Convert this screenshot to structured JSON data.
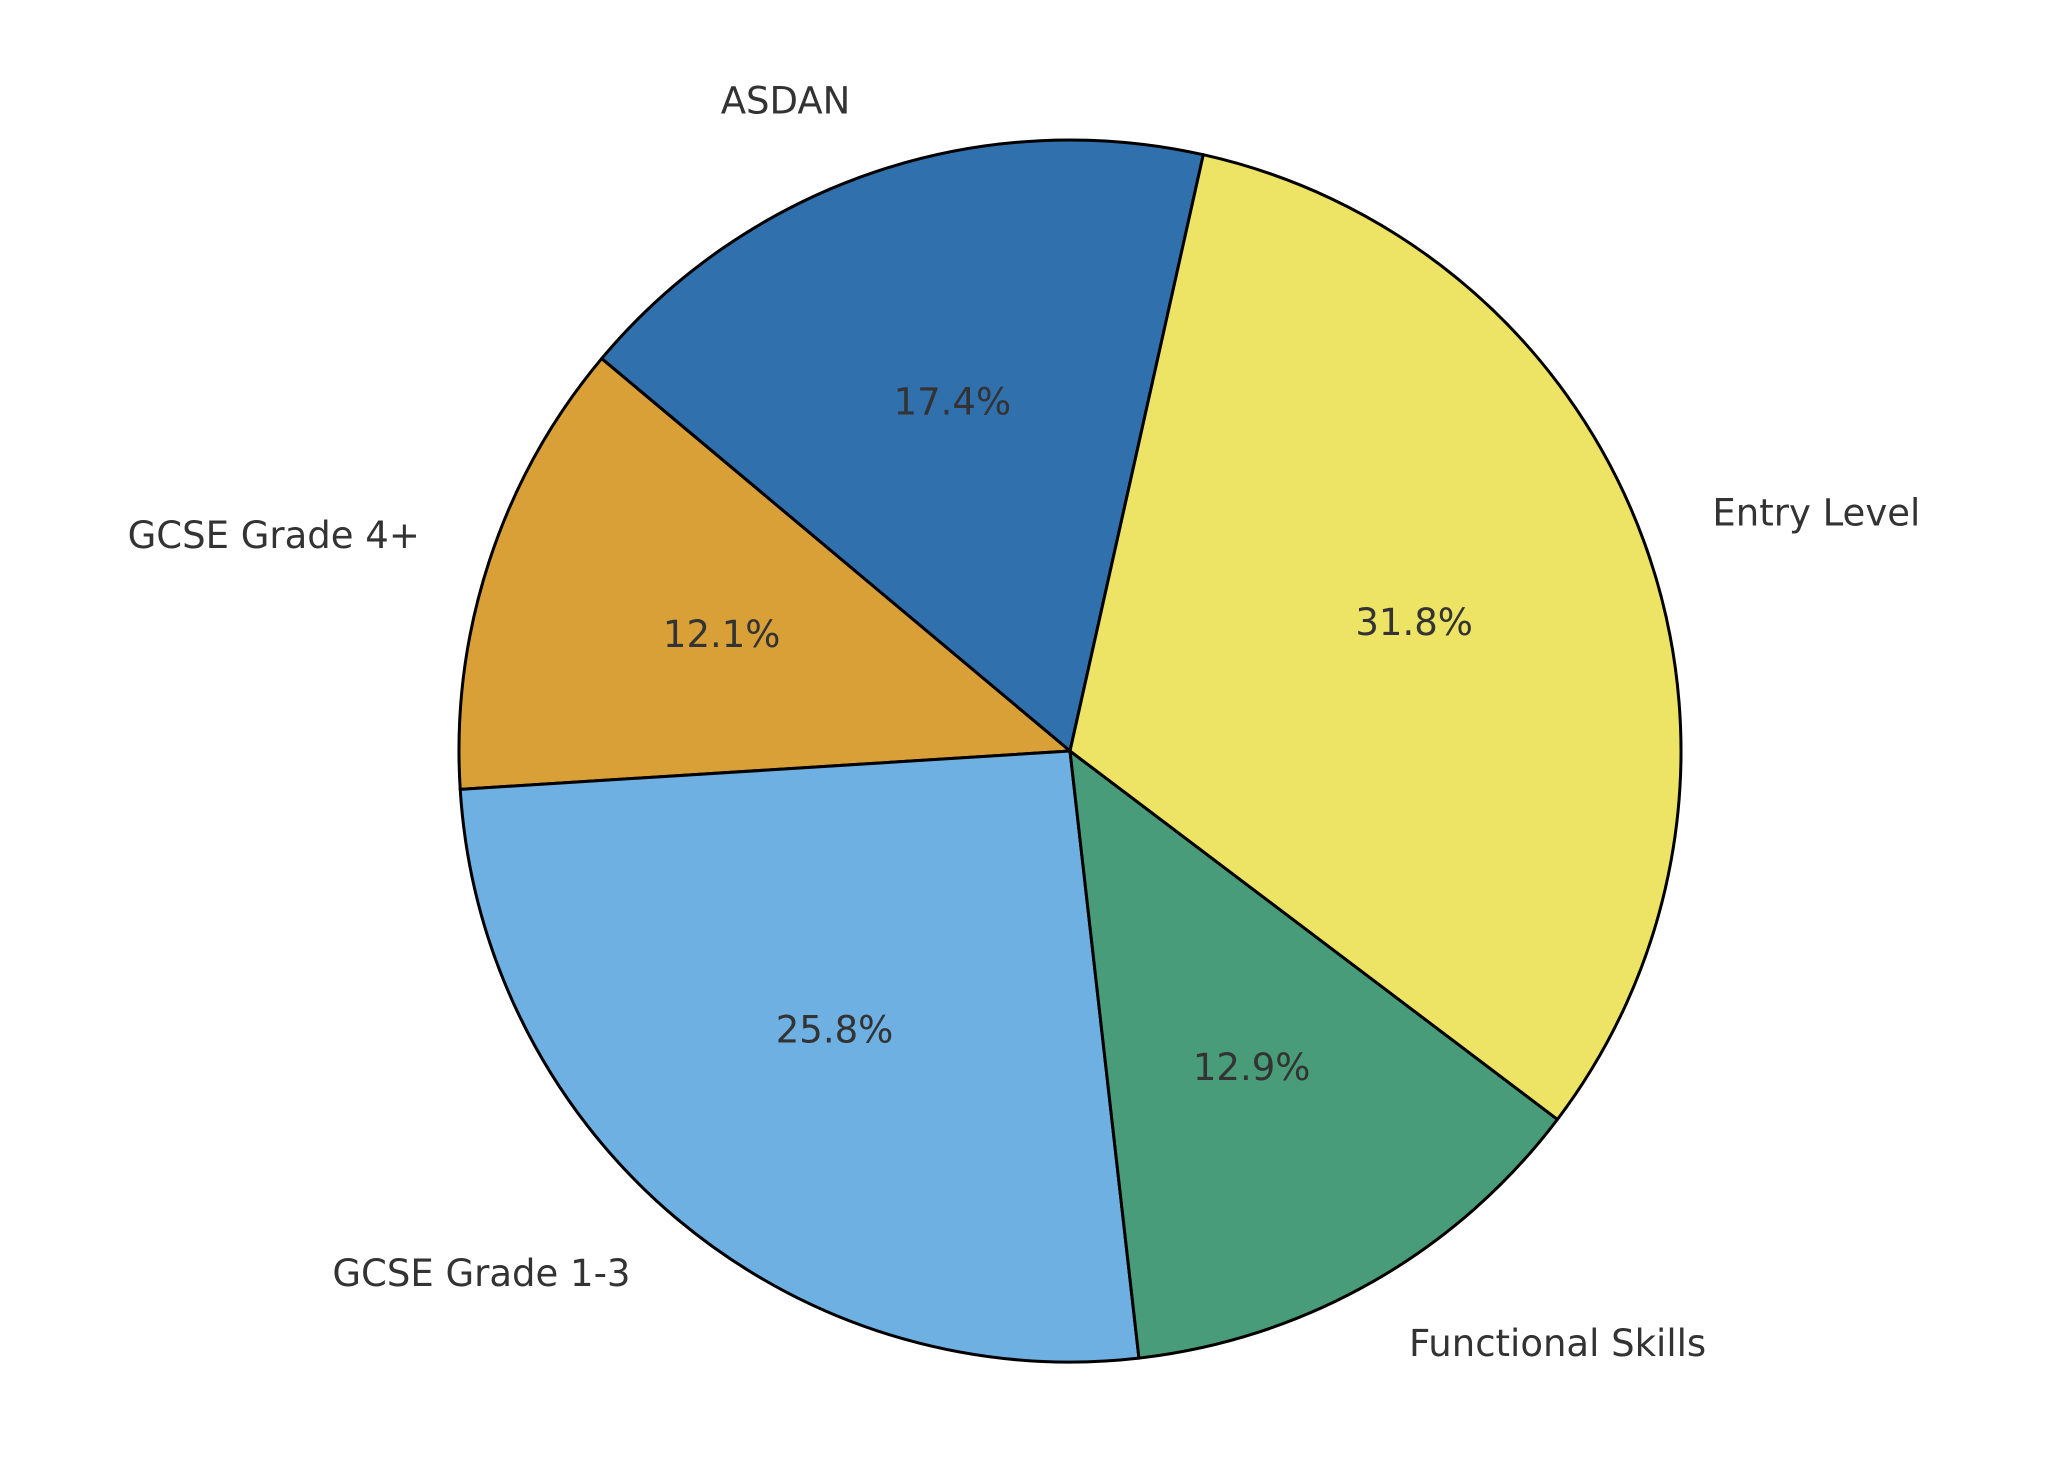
{
  "chart_data": {
    "type": "pie",
    "categories": [
      "ASDAN",
      "GCSE Grade 4+",
      "GCSE Grade 1-3",
      "Functional Skills",
      "Entry Level"
    ],
    "values": [
      17.4,
      12.1,
      25.8,
      12.9,
      31.8
    ],
    "value_labels": [
      "17.4%",
      "12.1%",
      "25.8%",
      "12.9%",
      "31.8%"
    ],
    "colors": [
      "#3070ad",
      "#d9a038",
      "#6eb0e2",
      "#489c79",
      "#ede364"
    ]
  }
}
